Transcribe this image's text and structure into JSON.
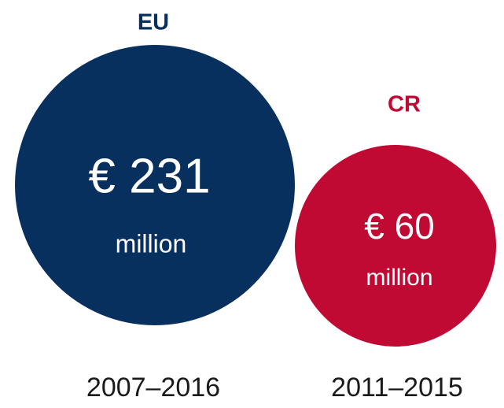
{
  "items": [
    {
      "label": "EU",
      "value": "€ 231",
      "unit": "million",
      "period": "2007–2016",
      "color": "#08305f"
    },
    {
      "label": "CR",
      "value": "€ 60",
      "unit": "million",
      "period": "2011–2015",
      "color": "#c10a33"
    }
  ]
}
